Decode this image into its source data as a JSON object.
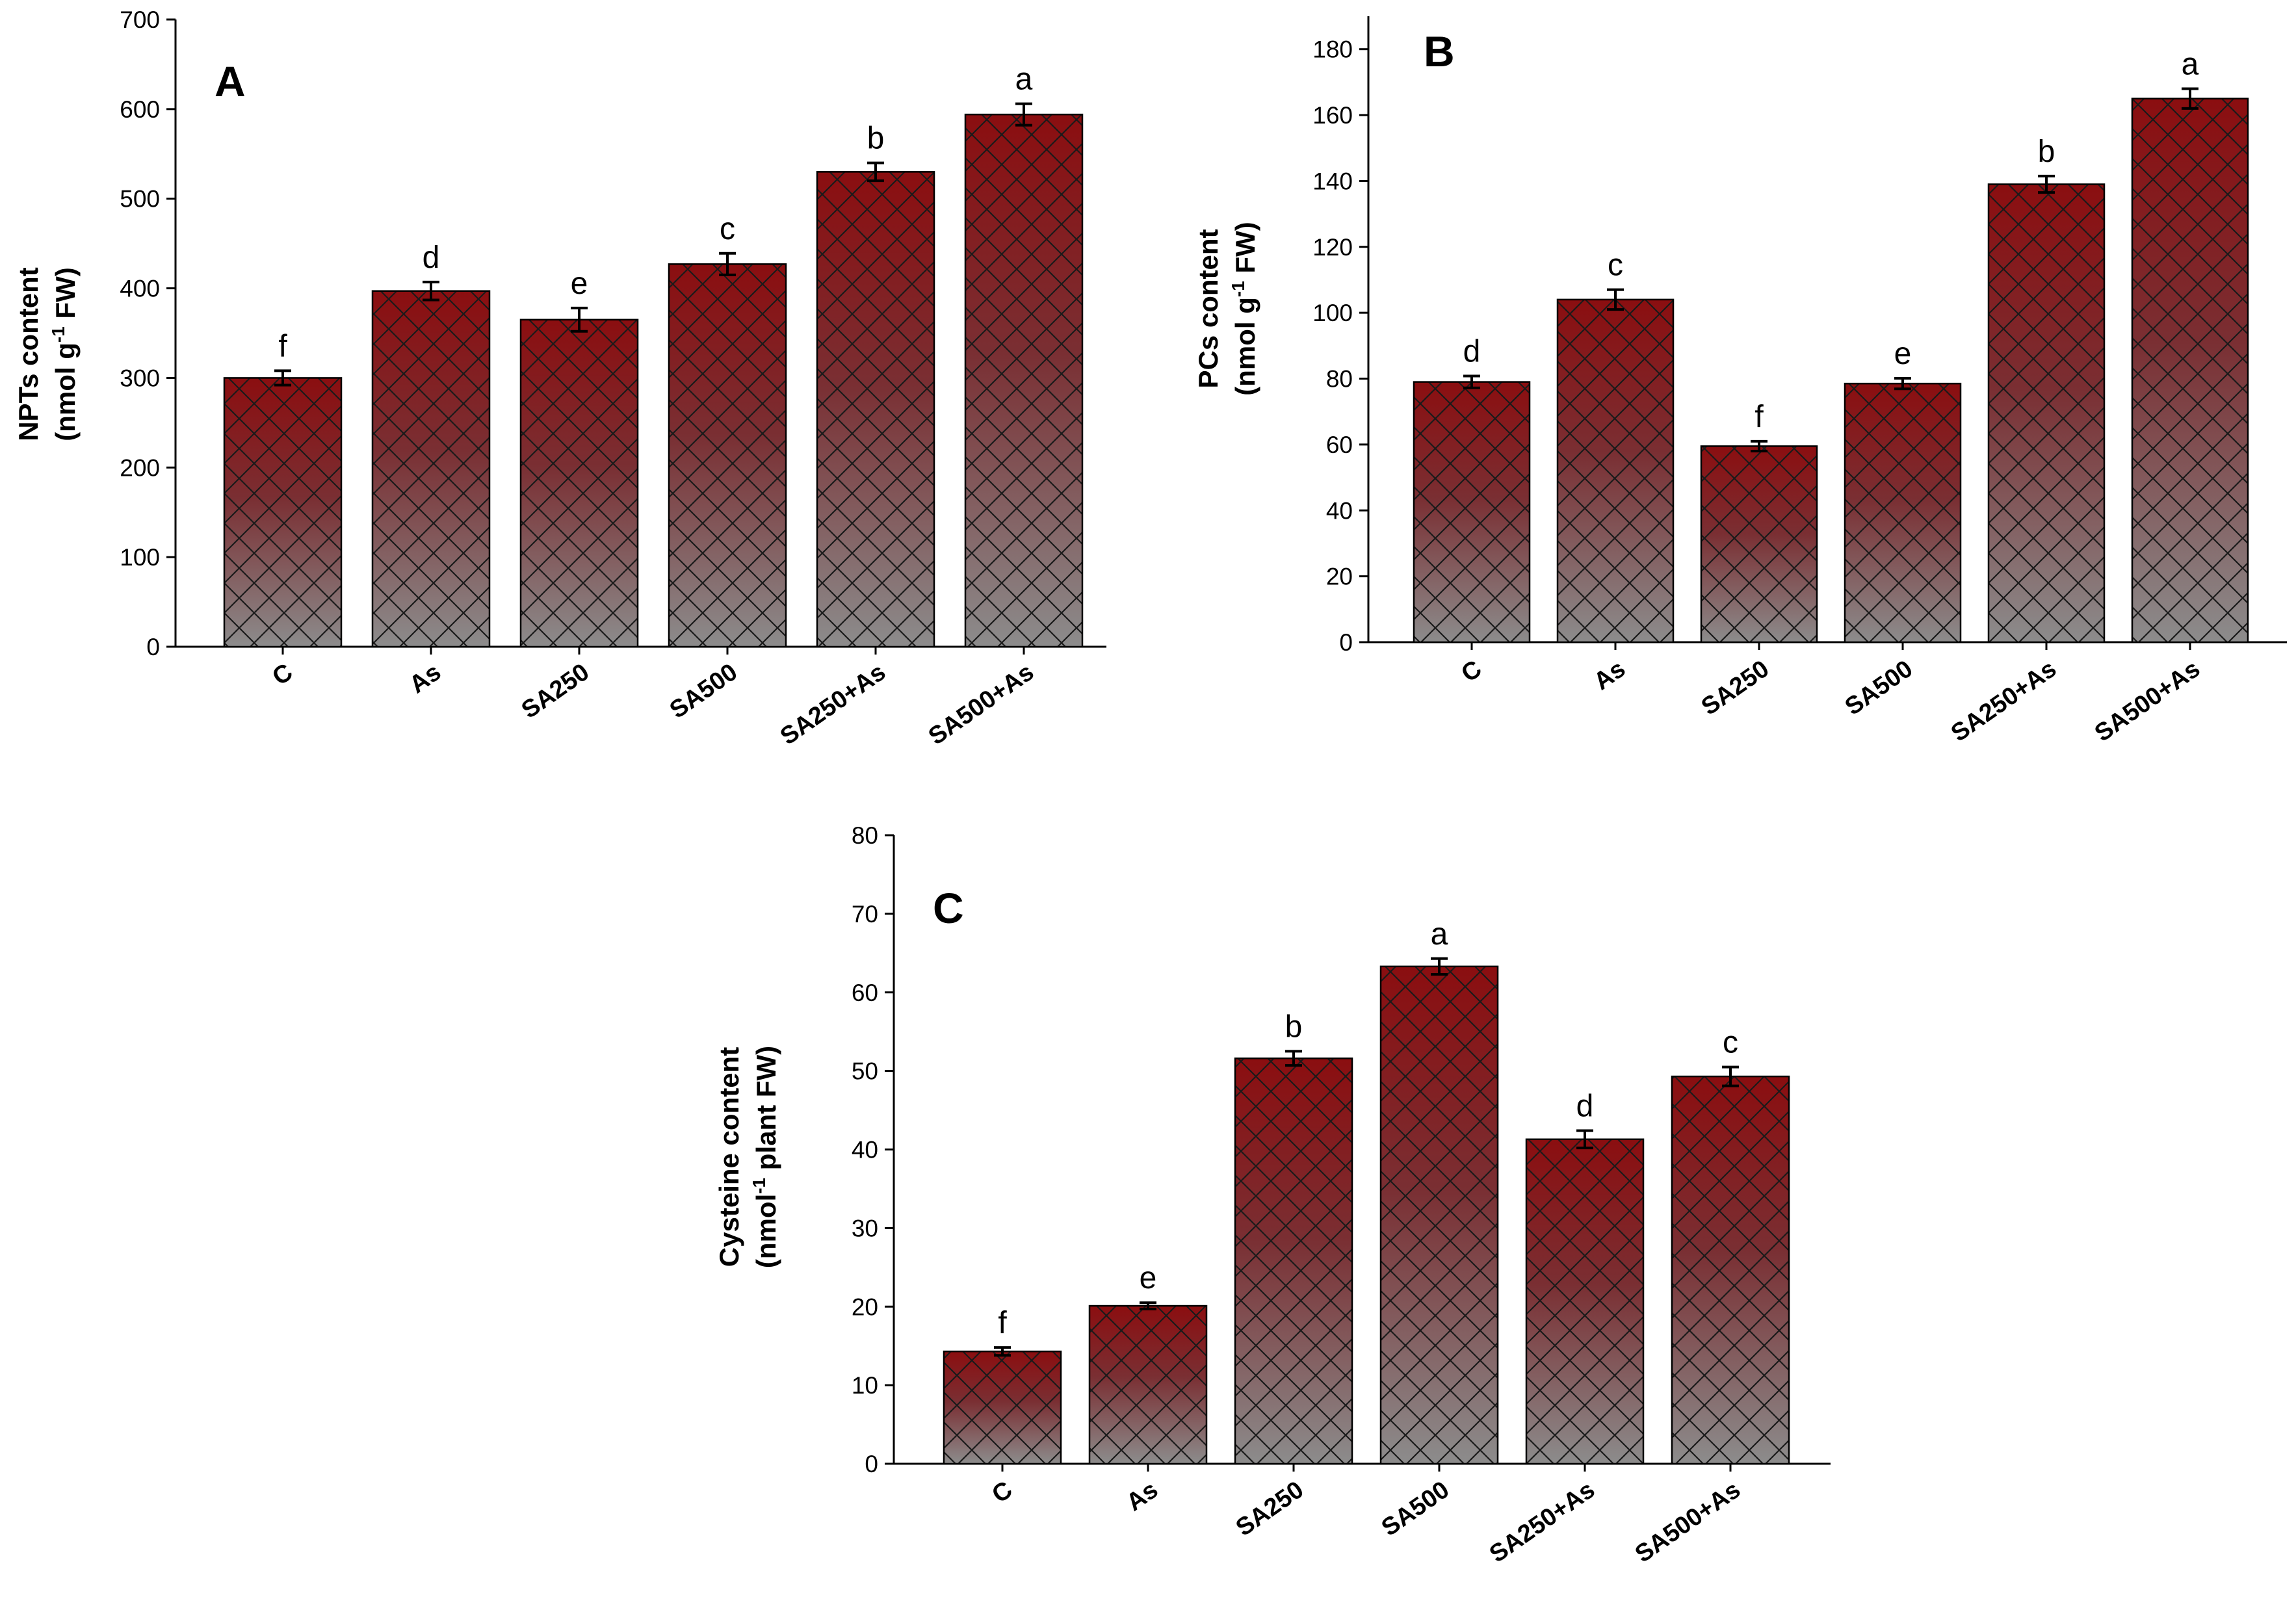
{
  "colors": {
    "bar_top": "#8b0e10",
    "bar_bottom": "#8c8c8c",
    "hatch": "#1a1a1a",
    "axis": "#000000"
  },
  "chart_data": [
    {
      "type": "bar",
      "panel": "A",
      "ylabel_line1": "NPTs content",
      "ylabel_line2": "(nmol g",
      "ylabel_sup": "-1",
      "ylabel_line2_end": " FW)",
      "ylim": [
        0,
        700
      ],
      "yticks": [
        0,
        100,
        200,
        300,
        400,
        500,
        600,
        700
      ],
      "categories": [
        "C",
        "As",
        "SA250",
        "SA500",
        "SA250+As",
        "SA500+As"
      ],
      "values": [
        300,
        397,
        365,
        427,
        530,
        594
      ],
      "errors": [
        8,
        10,
        13,
        12,
        10,
        12
      ],
      "letters": [
        "f",
        "d",
        "e",
        "c",
        "b",
        "a"
      ]
    },
    {
      "type": "bar",
      "panel": "B",
      "ylabel_line1": "PCs content",
      "ylabel_line2": "(nmol g",
      "ylabel_sup": "-1",
      "ylabel_line2_end": " FW)",
      "ylim": [
        0,
        190
      ],
      "yticks": [
        0,
        20,
        40,
        60,
        80,
        100,
        120,
        140,
        160,
        180
      ],
      "categories": [
        "C",
        "As",
        "SA250",
        "SA500",
        "SA250+As",
        "SA500+As"
      ],
      "values": [
        79,
        104,
        59.5,
        78.5,
        139,
        165
      ],
      "errors": [
        1.8,
        3,
        1.5,
        1.6,
        2.5,
        3
      ],
      "letters": [
        "d",
        "c",
        "f",
        "e",
        "b",
        "a"
      ]
    },
    {
      "type": "bar",
      "panel": "C",
      "ylabel_line1": "Cysteine content",
      "ylabel_line2": "(nmol",
      "ylabel_sup": "-1",
      "ylabel_line2_end": " plant FW)",
      "ylim": [
        0,
        80
      ],
      "yticks": [
        0,
        10,
        20,
        30,
        40,
        50,
        60,
        70,
        80
      ],
      "categories": [
        "C",
        "As",
        "SA250",
        "SA500",
        "SA250+As",
        "SA500+As"
      ],
      "values": [
        14.3,
        20.1,
        51.6,
        63.3,
        41.3,
        49.3
      ],
      "errors": [
        0.5,
        0.4,
        0.9,
        1.0,
        1.1,
        1.2
      ],
      "letters": [
        "f",
        "e",
        "b",
        "a",
        "d",
        "c"
      ]
    }
  ]
}
